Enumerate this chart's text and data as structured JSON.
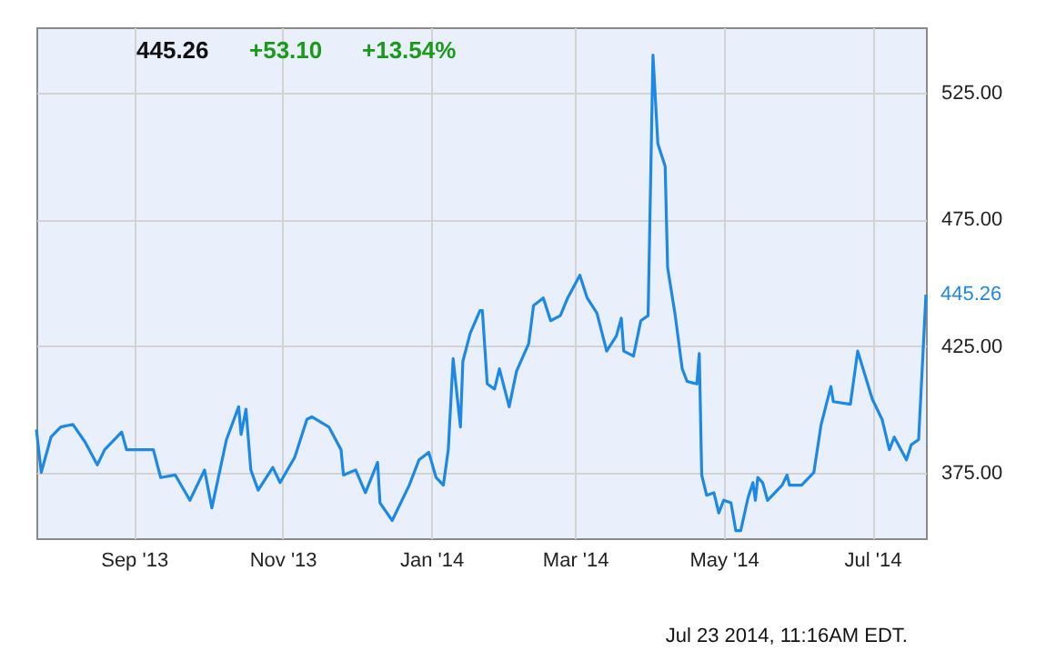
{
  "chart_data": {
    "type": "line",
    "annotations": [
      "445.26",
      "+53.10",
      "+13.54%",
      "Jul 23 2014, 11:16AM EDT."
    ],
    "x": [
      "2013-07-23",
      "2013-07-25",
      "2013-07-29",
      "2013-08-02",
      "2013-08-07",
      "2013-08-12",
      "2013-08-17",
      "2013-08-20",
      "2013-08-27",
      "2013-08-29",
      "2013-09-09",
      "2013-09-12",
      "2013-09-18",
      "2013-09-24",
      "2013-09-30",
      "2013-10-03",
      "2013-10-09",
      "2013-10-14",
      "2013-10-15",
      "2013-10-17",
      "2013-10-19",
      "2013-10-22",
      "2013-10-28",
      "2013-10-31",
      "2013-11-06",
      "2013-11-11",
      "2013-11-13",
      "2013-11-20",
      "2013-11-25",
      "2013-11-26",
      "2013-12-01",
      "2013-12-05",
      "2013-12-10",
      "2013-12-11",
      "2013-12-16",
      "2013-12-23",
      "2013-12-27",
      "2013-12-31",
      "2014-01-03",
      "2014-01-06",
      "2014-01-08",
      "2014-01-10",
      "2014-01-13",
      "2014-01-14",
      "2014-01-17",
      "2014-01-21",
      "2014-01-22",
      "2014-01-24",
      "2014-01-27",
      "2014-01-29",
      "2014-02-02",
      "2014-02-05",
      "2014-02-10",
      "2014-02-12",
      "2014-02-16",
      "2014-02-19",
      "2014-02-23",
      "2014-02-26",
      "2014-03-03",
      "2014-03-06",
      "2014-03-10",
      "2014-03-14",
      "2014-03-18",
      "2014-03-20",
      "2014-03-21",
      "2014-03-25",
      "2014-03-28",
      "2014-03-31",
      "2014-04-02",
      "2014-04-04",
      "2014-04-07",
      "2014-04-08",
      "2014-04-11",
      "2014-04-14",
      "2014-04-16",
      "2014-04-20",
      "2014-04-21",
      "2014-04-22",
      "2014-04-24",
      "2014-04-27",
      "2014-04-29",
      "2014-05-01",
      "2014-05-04",
      "2014-05-06",
      "2014-05-08",
      "2014-05-11",
      "2014-05-13",
      "2014-05-14",
      "2014-05-15",
      "2014-05-17",
      "2014-05-19",
      "2014-05-25",
      "2014-05-27",
      "2014-05-28",
      "2014-06-02",
      "2014-06-07",
      "2014-06-10",
      "2014-06-14",
      "2014-06-15",
      "2014-06-22",
      "2014-06-25",
      "2014-07-01",
      "2014-07-05",
      "2014-07-08",
      "2014-07-10",
      "2014-07-15",
      "2014-07-17",
      "2014-07-20",
      "2014-07-23"
    ],
    "series": [
      {
        "color": "#1e88e5",
        "values": [
          392,
          375,
          389,
          393,
          394,
          387,
          378,
          384,
          391,
          384,
          384,
          373,
          374,
          364,
          376,
          361,
          388,
          401,
          390,
          400,
          376,
          368,
          377,
          371,
          381,
          396,
          397,
          393,
          384,
          374,
          376,
          367,
          379,
          363,
          356,
          370,
          380,
          383,
          373,
          370,
          384,
          420,
          393,
          419,
          430,
          439,
          439,
          410,
          408,
          416,
          401,
          415,
          426,
          441,
          444,
          435,
          437,
          444,
          453,
          444,
          438,
          423,
          429,
          436,
          423,
          421,
          435,
          437,
          540,
          505,
          496,
          456,
          438,
          416,
          411,
          410,
          422,
          374,
          366,
          367,
          359,
          364,
          363,
          352,
          352,
          365,
          371,
          364,
          373,
          371,
          364,
          370,
          374,
          370,
          370,
          375,
          394,
          409,
          403,
          402,
          423,
          404,
          396,
          384,
          389,
          380,
          386,
          388,
          445.26
        ],
        "value_labels": [
          null,
          null,
          null,
          null,
          null,
          null,
          null,
          null,
          null,
          null,
          null,
          null,
          null,
          null,
          null,
          null,
          null,
          null,
          null,
          null,
          null,
          null,
          null,
          null,
          null,
          null,
          null,
          null,
          null,
          null,
          null,
          null,
          null,
          null,
          null,
          null,
          null,
          null,
          null,
          null,
          null,
          null,
          null,
          null,
          null,
          null,
          null,
          null,
          null,
          null,
          null,
          null,
          null,
          null,
          null,
          null,
          null,
          null,
          null,
          null,
          null,
          null,
          null,
          null,
          null,
          null,
          null,
          null,
          null,
          null,
          null,
          null,
          null,
          null,
          null,
          null,
          null,
          null,
          null,
          null,
          null,
          null,
          null,
          null,
          null,
          null,
          null,
          null,
          null,
          null,
          null,
          null,
          null,
          null,
          null,
          null,
          null,
          null,
          null,
          null,
          null,
          null,
          null,
          null,
          null,
          null,
          null,
          null,
          "445.26"
        ]
      }
    ],
    "xlim": [
      "2013-07-23",
      "2014-07-23"
    ],
    "xticks": [
      {
        "value": "2013-09-01",
        "label": "Sep '13"
      },
      {
        "value": "2013-11-01",
        "label": "Nov '13"
      },
      {
        "value": "2014-01-01",
        "label": "Jan '14"
      },
      {
        "value": "2014-03-01",
        "label": "Mar '14"
      },
      {
        "value": "2014-05-01",
        "label": "May '14"
      },
      {
        "value": "2014-07-01",
        "label": "Jul '14"
      }
    ],
    "ylim": [
      349,
      551
    ],
    "yticks": [
      {
        "value": 375,
        "label": "375.00"
      },
      {
        "value": 425,
        "label": "425.00"
      },
      {
        "value": 475,
        "label": "475.00"
      },
      {
        "value": 525,
        "label": "525.00"
      }
    ],
    "grid": true,
    "marker": "none",
    "line_style": "solid"
  }
}
